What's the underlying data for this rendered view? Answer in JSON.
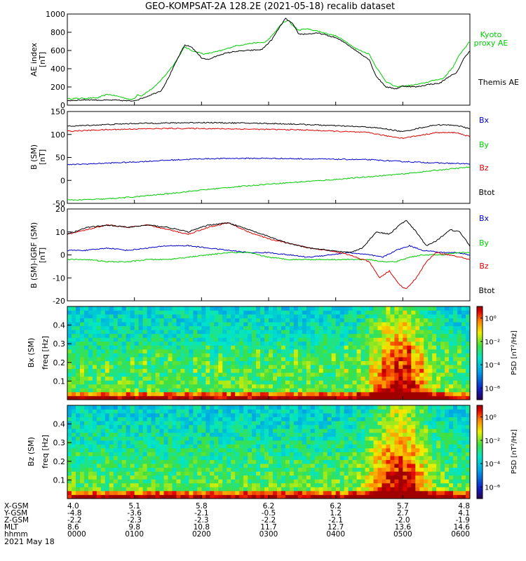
{
  "chart_data": [
    {
      "type": "line",
      "title": "GEO-KOMPSAT-2A 128.2E (2021-05-18) recalib dataset",
      "ylabel_lines": [
        "AE index",
        "[nT]"
      ],
      "ylim": [
        0,
        1000
      ],
      "yticks": [
        "0",
        "200",
        "400",
        "600",
        "800",
        "1000"
      ],
      "series": [
        {
          "name": "Kyoto proxy AE",
          "label_lines": [
            "Kyoto",
            "proxy AE"
          ],
          "color": "#00cc00",
          "x": [
            0,
            0.2,
            0.45,
            0.6,
            0.8,
            0.95,
            1.0,
            1.05,
            1.1,
            1.3,
            1.45,
            1.6,
            1.75,
            1.85,
            2.05,
            2.3,
            2.5,
            2.75,
            2.95,
            3.05,
            3.2,
            3.3,
            3.35,
            3.45,
            3.55,
            3.75,
            4.0,
            4.15,
            4.3,
            4.5,
            4.6,
            4.75,
            4.9,
            5.0,
            5.15,
            5.3,
            5.5,
            5.6,
            5.75,
            5.85,
            6.0
          ],
          "y": [
            70,
            75,
            80,
            120,
            90,
            60,
            75,
            120,
            100,
            200,
            320,
            460,
            640,
            600,
            560,
            600,
            650,
            680,
            690,
            760,
            900,
            930,
            880,
            820,
            840,
            810,
            760,
            700,
            620,
            560,
            420,
            260,
            200,
            210,
            220,
            240,
            280,
            290,
            420,
            560,
            700
          ]
        },
        {
          "name": "Themis AE",
          "label_lines": [
            "Themis AE"
          ],
          "color": "#000000",
          "x": [
            0,
            0.3,
            0.5,
            0.7,
            0.85,
            0.95,
            1.05,
            1.2,
            1.4,
            1.5,
            1.65,
            1.75,
            1.85,
            2.0,
            2.1,
            2.3,
            2.5,
            2.7,
            2.9,
            3.05,
            3.15,
            3.25,
            3.35,
            3.45,
            3.55,
            3.75,
            4.0,
            4.15,
            4.3,
            4.5,
            4.6,
            4.75,
            4.9,
            5.0,
            5.2,
            5.4,
            5.55,
            5.7,
            5.8,
            5.9,
            6.0
          ],
          "y": [
            50,
            60,
            55,
            55,
            50,
            45,
            60,
            100,
            160,
            290,
            520,
            660,
            640,
            520,
            500,
            560,
            590,
            600,
            610,
            720,
            840,
            950,
            900,
            780,
            780,
            790,
            740,
            680,
            600,
            500,
            320,
            200,
            180,
            210,
            200,
            230,
            240,
            320,
            350,
            500,
            600
          ]
        }
      ]
    },
    {
      "type": "line",
      "ylabel_lines": [
        "B (SM)",
        "[nT]"
      ],
      "ylim": [
        -50,
        150
      ],
      "yticks": [
        "-50",
        "0",
        "50",
        "100",
        "150"
      ],
      "series": [
        {
          "name": "Bx",
          "color": "#0000cc",
          "x": [
            0,
            0.5,
            1.0,
            1.5,
            2.0,
            2.5,
            3.0,
            3.5,
            4.0,
            4.5,
            5.0,
            5.5,
            6.0
          ],
          "y": [
            34,
            37,
            40,
            44,
            47,
            48,
            48,
            47,
            46,
            45,
            41,
            38,
            36
          ]
        },
        {
          "name": "By",
          "color": "#00cc00",
          "x": [
            0,
            0.5,
            1.0,
            1.5,
            2.0,
            2.5,
            3.0,
            3.5,
            4.0,
            4.5,
            5.0,
            5.5,
            6.0
          ],
          "y": [
            -43,
            -41,
            -36,
            -29,
            -21,
            -14,
            -8,
            -3,
            2,
            8,
            14,
            22,
            29
          ]
        },
        {
          "name": "Bz",
          "color": "#dd0000",
          "x": [
            0,
            0.5,
            1.0,
            1.5,
            2.0,
            2.5,
            3.0,
            3.5,
            4.0,
            4.5,
            4.75,
            5.0,
            5.25,
            5.5,
            5.8,
            6.0
          ],
          "y": [
            107,
            110,
            112,
            113,
            113,
            112,
            111,
            110,
            107,
            104,
            97,
            92,
            98,
            104,
            104,
            95
          ]
        },
        {
          "name": "Btot",
          "color": "#000000",
          "x": [
            0,
            0.5,
            1.0,
            1.5,
            2.0,
            2.5,
            3.0,
            3.5,
            4.0,
            4.5,
            4.75,
            5.0,
            5.25,
            5.5,
            5.8,
            6.0
          ],
          "y": [
            118,
            121,
            124,
            125,
            126,
            125,
            124,
            122,
            119,
            116,
            112,
            106,
            114,
            121,
            120,
            112
          ]
        }
      ]
    },
    {
      "type": "line",
      "ylabel_lines": [
        "B (SM)-IGRF (SM)",
        "[nT]"
      ],
      "ylim": [
        -20,
        20
      ],
      "yticks": [
        "-20",
        "-10",
        "0",
        "10",
        "20"
      ],
      "series": [
        {
          "name": "Bx",
          "color": "#0000cc",
          "x": [
            0,
            0.3,
            0.6,
            0.9,
            1.2,
            1.5,
            1.8,
            2.1,
            2.4,
            2.7,
            3.0,
            3.3,
            3.6,
            3.9,
            4.2,
            4.5,
            4.7,
            4.9,
            5.1,
            5.3,
            5.6,
            5.8,
            6.0
          ],
          "y": [
            2,
            2,
            3,
            2,
            3,
            4,
            4,
            3,
            2,
            1,
            1,
            0,
            -1,
            0,
            1,
            0,
            -1,
            2,
            4,
            2,
            1,
            1,
            0
          ]
        },
        {
          "name": "By",
          "color": "#00cc00",
          "x": [
            0,
            0.3,
            0.6,
            0.9,
            1.2,
            1.5,
            1.8,
            2.1,
            2.4,
            2.7,
            3.0,
            3.3,
            3.6,
            3.9,
            4.2,
            4.5,
            4.7,
            4.9,
            5.1,
            5.3,
            5.6,
            5.8,
            6.0
          ],
          "y": [
            -2,
            -2,
            -3,
            -3,
            -2,
            -2,
            -1,
            0,
            1,
            1,
            -1,
            -2,
            -2,
            -2,
            -2,
            -2,
            -3,
            -3,
            -1,
            0,
            0,
            1,
            1
          ]
        },
        {
          "name": "Bz",
          "color": "#dd0000",
          "x": [
            0,
            0.3,
            0.6,
            0.9,
            1.2,
            1.5,
            1.8,
            2.1,
            2.4,
            2.7,
            3.0,
            3.3,
            3.6,
            3.9,
            4.2,
            4.5,
            4.65,
            4.8,
            4.95,
            5.05,
            5.2,
            5.35,
            5.5,
            5.7,
            5.85,
            6.0
          ],
          "y": [
            9,
            11,
            13,
            12,
            13,
            11,
            9,
            12,
            14,
            10,
            7,
            5,
            3,
            2,
            0,
            -3,
            -10,
            -7,
            -13,
            -15,
            -10,
            -3,
            1,
            0,
            -1,
            -2
          ]
        },
        {
          "name": "Btot",
          "color": "#000000",
          "x": [
            0,
            0.3,
            0.6,
            0.9,
            1.2,
            1.5,
            1.8,
            2.1,
            2.4,
            2.7,
            3.0,
            3.3,
            3.6,
            3.9,
            4.2,
            4.4,
            4.6,
            4.8,
            4.95,
            5.05,
            5.2,
            5.35,
            5.5,
            5.7,
            5.85,
            6.0
          ],
          "y": [
            9,
            12,
            13,
            12,
            13,
            12,
            10,
            13,
            14,
            11,
            8,
            5,
            3,
            2,
            1,
            3,
            10,
            9,
            13,
            15,
            10,
            4,
            6,
            11,
            10,
            4
          ]
        }
      ]
    },
    {
      "type": "heatmap",
      "ylabel_lines": [
        "Bx (SM)",
        "freq [Hz]"
      ],
      "ylim": [
        0,
        0.5
      ],
      "yticks": [
        "0.1",
        "0.2",
        "0.3",
        "0.4"
      ],
      "colorbar_label": "PSD [nT²/Hz]",
      "colorbar_ticks": [
        "10⁰",
        "10⁻²",
        "10⁻⁴",
        "10⁻⁶"
      ],
      "colorbar_range_log10": [
        -7,
        1
      ]
    },
    {
      "type": "heatmap",
      "ylabel_lines": [
        "Bz (SM)",
        "freq [Hz]"
      ],
      "ylim": [
        0,
        0.5
      ],
      "yticks": [
        "0.1",
        "0.2",
        "0.3",
        "0.4"
      ],
      "colorbar_label": "PSD [nT²/Hz]",
      "colorbar_ticks": [
        "10⁰",
        "10⁻²",
        "10⁻⁴",
        "10⁻⁶"
      ],
      "colorbar_range_log10": [
        -7,
        1
      ]
    }
  ],
  "ephemeris": {
    "rows": [
      {
        "label": "X-GSM",
        "values": [
          "4.0",
          "5.1",
          "5.8",
          "6.2",
          "6.2",
          "5.7",
          "4.8"
        ]
      },
      {
        "label": "Y-GSM",
        "values": [
          "-4.8",
          "-3.6",
          "-2.1",
          "-0.5",
          "1.2",
          "2.7",
          "4.1"
        ]
      },
      {
        "label": "Z-GSM",
        "values": [
          "-2.2",
          "-2.3",
          "-2.3",
          "-2.2",
          "-2.1",
          "-2.0",
          "-1.9"
        ]
      },
      {
        "label": "MLT",
        "values": [
          "8.6",
          "9.8",
          "10.8",
          "11.7",
          "12.7",
          "13.6",
          "14.6"
        ]
      },
      {
        "label": "hhmm",
        "values": [
          "0000",
          "0100",
          "0200",
          "0300",
          "0400",
          "0500",
          "0600"
        ]
      }
    ],
    "date": "2021 May 18"
  }
}
